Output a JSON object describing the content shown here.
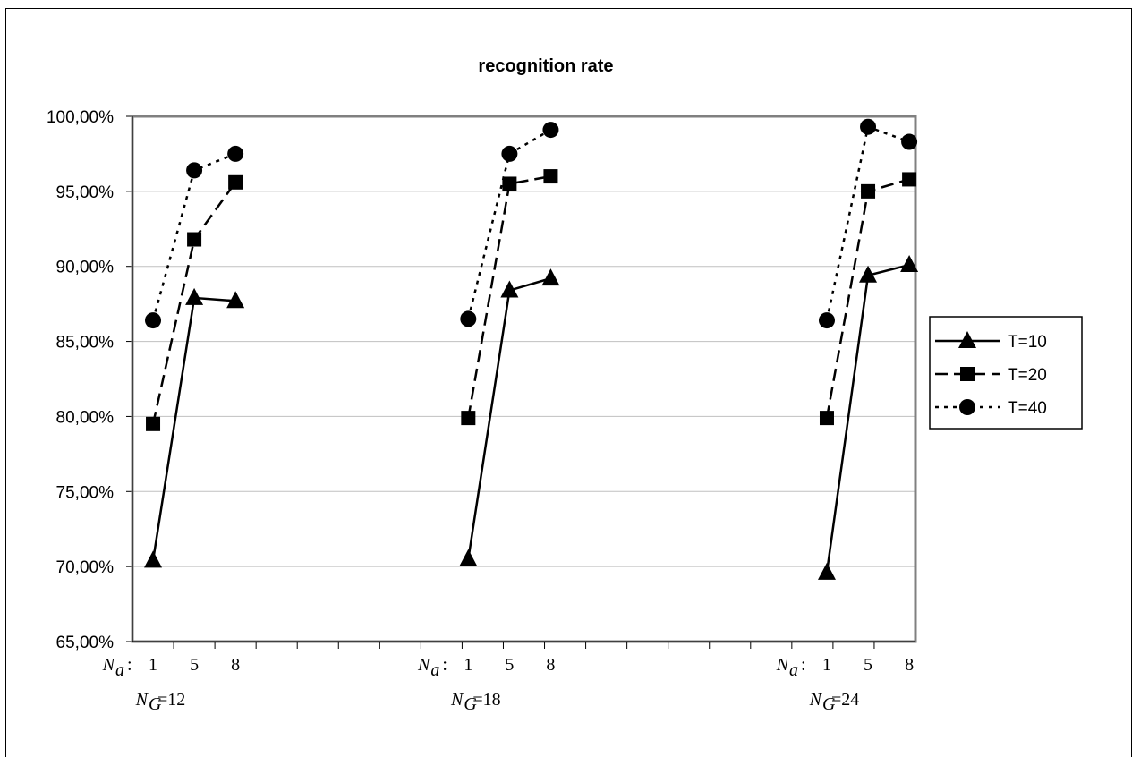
{
  "chart_data": {
    "type": "line",
    "title": "recognition rate",
    "ylim": [
      0.65,
      1.0
    ],
    "yticks": [
      "65,00%",
      "70,00%",
      "75,00%",
      "80,00%",
      "85,00%",
      "90,00%",
      "95,00%",
      "100,00%"
    ],
    "grid": true,
    "legend_position": "right",
    "groups": [
      {
        "ng_prefix": "N",
        "ng_sub": "G",
        "ng_value": "=12",
        "na_prefix": "N",
        "na_sub": "a",
        "na_colon": ":",
        "categories": [
          "1",
          "5",
          "8"
        ]
      },
      {
        "ng_prefix": "N",
        "ng_sub": "G",
        "ng_value": "=18",
        "na_prefix": "N",
        "na_sub": "a",
        "na_colon": ":",
        "categories": [
          "1",
          "5",
          "8"
        ]
      },
      {
        "ng_prefix": "N",
        "ng_sub": "G",
        "ng_value": "=24",
        "na_prefix": "N",
        "na_sub": "a",
        "na_colon": ":",
        "categories": [
          "1",
          "5",
          "8"
        ]
      }
    ],
    "series": [
      {
        "name": "T=10",
        "marker": "triangle",
        "dash": "solid",
        "values": [
          [
            0.704,
            0.879,
            0.877
          ],
          [
            0.705,
            0.884,
            0.892
          ],
          [
            0.696,
            0.894,
            0.901
          ]
        ]
      },
      {
        "name": "T=20",
        "marker": "square",
        "dash": "dashed",
        "values": [
          [
            0.795,
            0.918,
            0.956
          ],
          [
            0.799,
            0.955,
            0.96
          ],
          [
            0.799,
            0.95,
            0.958
          ]
        ]
      },
      {
        "name": "T=40",
        "marker": "circle",
        "dash": "dotted",
        "values": [
          [
            0.864,
            0.964,
            0.975
          ],
          [
            0.865,
            0.975,
            0.991
          ],
          [
            0.864,
            0.993,
            0.983
          ]
        ]
      }
    ]
  }
}
